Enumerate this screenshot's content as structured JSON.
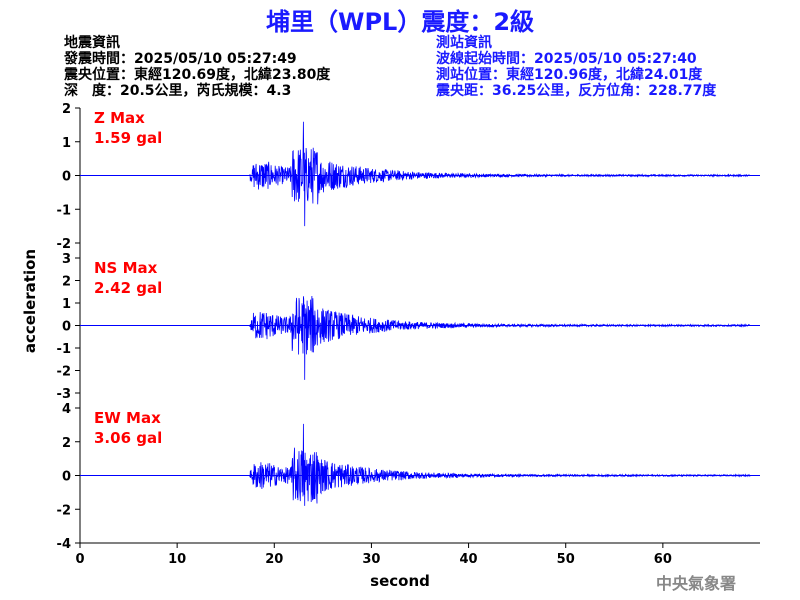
{
  "title": "埔里（WPL）震度：2級",
  "info": {
    "left": [
      "地震資訊",
      "發震時間：2025/05/10 05:27:49",
      "震央位置：東經120.69度，北緯23.80度",
      "深　度：20.5公里，芮氏規模：4.3"
    ],
    "right": [
      "測站資訊",
      "波線起始時間：2025/05/10 05:27:40",
      "測站位置：東經120.96度，北緯24.01度",
      "震央距：36.25公里，反方位角：228.77度"
    ]
  },
  "footer": "中央氣象署",
  "chart_data": {
    "type": "line",
    "xlabel": "second",
    "ylabel": "acceleration",
    "xlim": [
      0,
      70
    ],
    "xticks": [
      0,
      10,
      20,
      30,
      40,
      50,
      60
    ],
    "line_color": "#0000ff",
    "label_color": "#ff0000",
    "panels": [
      {
        "name": "Z Max",
        "max_label": "1.59 gal",
        "ylim": [
          -2,
          2
        ],
        "yticks": [
          -2,
          -1,
          0,
          1,
          2
        ],
        "onset": 17.5,
        "peak_time": 23.0,
        "peak": 1.59,
        "trough": -1.5
      },
      {
        "name": "NS Max",
        "max_label": "2.42 gal",
        "ylim": [
          -3,
          3
        ],
        "yticks": [
          -3,
          -2,
          -1,
          0,
          1,
          2,
          3
        ],
        "onset": 17.5,
        "peak_time": 23.0,
        "peak": 1.3,
        "trough": -2.42
      },
      {
        "name": "EW Max",
        "max_label": "3.06 gal",
        "ylim": [
          -4,
          4
        ],
        "yticks": [
          -4,
          -2,
          0,
          2,
          4
        ],
        "onset": 17.5,
        "peak_time": 23.0,
        "peak": 3.06,
        "trough": -1.8
      }
    ]
  }
}
